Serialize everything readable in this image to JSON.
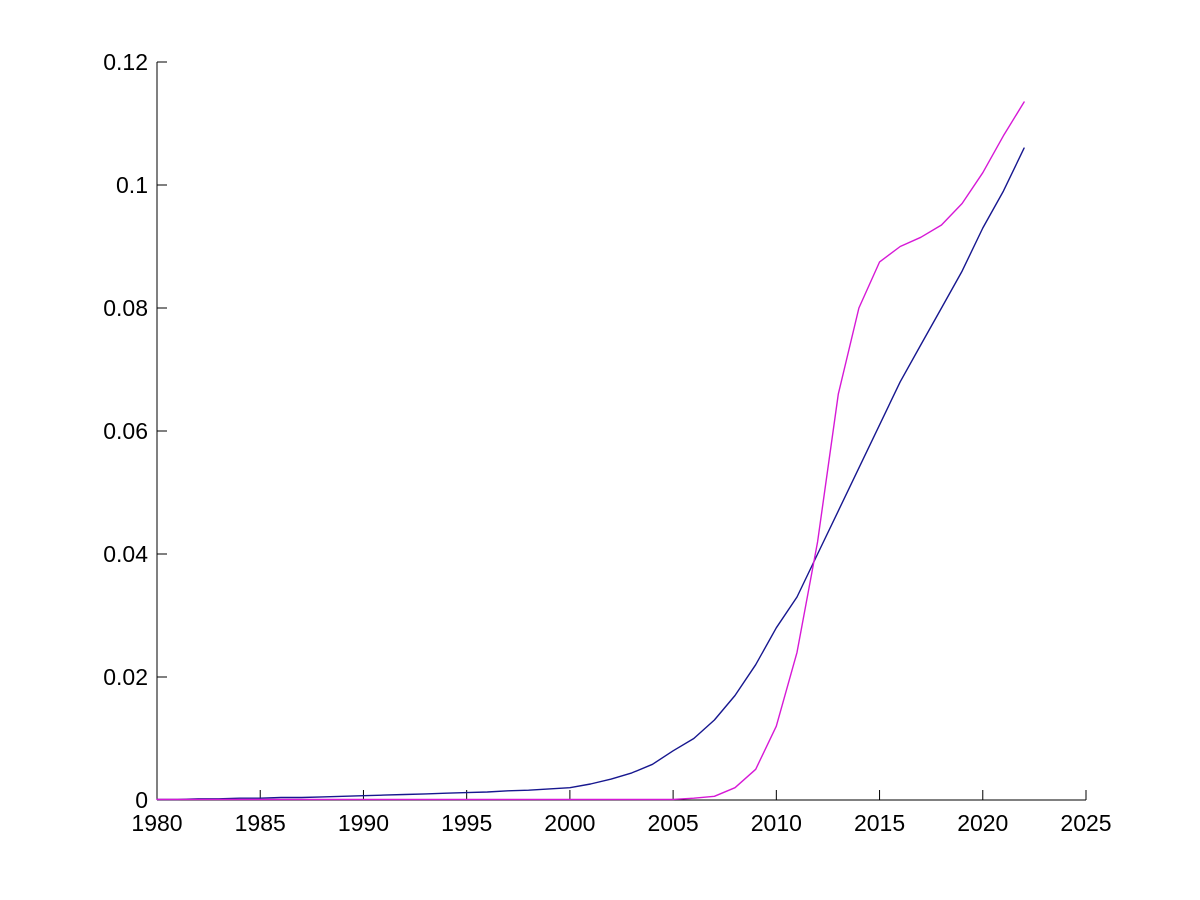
{
  "chart_data": {
    "type": "line",
    "title": "",
    "xlabel": "",
    "ylabel": "",
    "grid": false,
    "legend": "none",
    "background_color": "#ffffff",
    "axis_color": "#000000",
    "xlim": [
      1980,
      2025
    ],
    "ylim": [
      0,
      0.12
    ],
    "x_ticks": {
      "values": [
        1980,
        1985,
        1990,
        1995,
        2000,
        2005,
        2010,
        2015,
        2020,
        2025
      ],
      "labels": [
        "1980",
        "1985",
        "1990",
        "1995",
        "2000",
        "2005",
        "2010",
        "2015",
        "2020",
        "2025"
      ]
    },
    "y_ticks": {
      "values": [
        0,
        0.02,
        0.04,
        0.06,
        0.08,
        0.1,
        0.12
      ],
      "labels": [
        "0",
        "0.02",
        "0.04",
        "0.06",
        "0.08",
        "0.1",
        "0.12"
      ]
    },
    "x": [
      1980,
      1981,
      1982,
      1983,
      1984,
      1985,
      1986,
      1987,
      1988,
      1989,
      1990,
      1991,
      1992,
      1993,
      1994,
      1995,
      1996,
      1997,
      1998,
      1999,
      2000,
      2001,
      2002,
      2003,
      2004,
      2005,
      2006,
      2007,
      2008,
      2009,
      2010,
      2011,
      2012,
      2013,
      2014,
      2015,
      2016,
      2017,
      2018,
      2019,
      2020,
      2021,
      2022
    ],
    "series": [
      {
        "name": "dark-blue-line",
        "color": "#17178f",
        "values": [
          0.0001,
          0.0001,
          0.0002,
          0.0002,
          0.0003,
          0.0003,
          0.0004,
          0.0004,
          0.0005,
          0.0006,
          0.0007,
          0.0008,
          0.0009,
          0.001,
          0.0011,
          0.0012,
          0.0013,
          0.0015,
          0.0016,
          0.0018,
          0.002,
          0.0026,
          0.0034,
          0.0044,
          0.0058,
          0.008,
          0.01,
          0.013,
          0.017,
          0.022,
          0.028,
          0.033,
          0.04,
          0.047,
          0.054,
          0.061,
          0.068,
          0.074,
          0.08,
          0.086,
          0.093,
          0.099,
          0.106
        ]
      },
      {
        "name": "magenta-line",
        "color": "#d619d6",
        "values": [
          0.0001,
          0.0001,
          0.0001,
          0.0001,
          0.0001,
          0.0001,
          0.0001,
          0.0001,
          0.0001,
          0.0001,
          0.0001,
          0.0001,
          0.0001,
          0.0001,
          0.0001,
          0.0001,
          0.0001,
          0.0001,
          0.0001,
          0.0001,
          0.0001,
          0.0001,
          0.0001,
          0.0001,
          0.0001,
          0.0001,
          0.0003,
          0.0006,
          0.002,
          0.005,
          0.012,
          0.024,
          0.042,
          0.066,
          0.08,
          0.0875,
          0.09,
          0.0915,
          0.0935,
          0.097,
          0.102,
          0.108,
          0.1135
        ]
      }
    ]
  }
}
